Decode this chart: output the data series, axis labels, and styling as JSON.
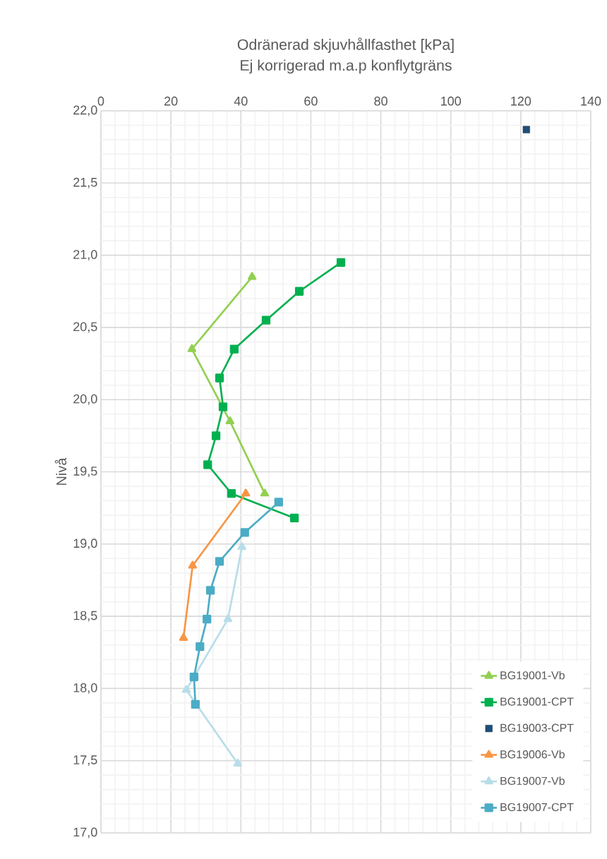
{
  "chart_data": {
    "type": "line",
    "title": "Odränerad skjuvhållfasthet [kPa]",
    "subtitle": "Ej korrigerad m.a.p konflytgräns",
    "ylabel": "Nivå",
    "xlim": [
      0,
      140
    ],
    "xticks": [
      0,
      20,
      40,
      60,
      80,
      100,
      120,
      140
    ],
    "ylim": [
      17,
      22
    ],
    "yticks": [
      {
        "value": 17,
        "label": "17,0"
      },
      {
        "value": 17.5,
        "label": "17,5"
      },
      {
        "value": 18,
        "label": "18,0"
      },
      {
        "value": 18.5,
        "label": "18,5"
      },
      {
        "value": 19,
        "label": "19,0"
      },
      {
        "value": 19.5,
        "label": "19,5"
      },
      {
        "value": 20,
        "label": "20,0"
      },
      {
        "value": 20.5,
        "label": "20,5"
      },
      {
        "value": 21,
        "label": "21,0"
      },
      {
        "value": 21.5,
        "label": "21,5"
      },
      {
        "value": 22,
        "label": "22,0"
      }
    ],
    "grid": true,
    "legend": "bottom right",
    "series": [
      {
        "name": "BG19001-Vb",
        "color": "#92d050",
        "marker": "triangle",
        "x": [
          43.2,
          26.0,
          36.9,
          46.8
        ],
        "values": [
          20.85,
          20.35,
          19.85,
          19.35
        ]
      },
      {
        "name": "BG19001-CPT",
        "color": "#00b050",
        "marker": "square",
        "x": [
          68.6,
          56.7,
          47.2,
          38.1,
          33.9,
          34.9,
          32.9,
          30.5,
          37.3,
          55.3
        ],
        "values": [
          20.95,
          20.75,
          20.55,
          20.35,
          20.15,
          19.95,
          19.75,
          19.55,
          19.35,
          19.18
        ]
      },
      {
        "name": "BG19003-CPT",
        "color": "#1f4e79",
        "type": "scatter",
        "marker": "square",
        "x": [
          121.6
        ],
        "values": [
          21.87
        ]
      },
      {
        "name": "BG19006-Vb",
        "color": "#f79646",
        "marker": "triangle",
        "x": [
          41.4,
          26.2,
          23.6
        ],
        "values": [
          19.35,
          18.85,
          18.35
        ]
      },
      {
        "name": "BG19007-Vb",
        "color": "#b7dee8",
        "marker": "triangle",
        "x": [
          40.3,
          36.3,
          24.4,
          39.1
        ],
        "values": [
          18.98,
          18.48,
          17.99,
          17.48
        ]
      },
      {
        "name": "BG19007-CPT",
        "color": "#4bacc6",
        "marker": "square",
        "x": [
          50.8,
          41.1,
          33.9,
          31.3,
          30.3,
          28.3,
          26.6,
          27.0
        ],
        "values": [
          19.29,
          19.08,
          18.88,
          18.68,
          18.48,
          18.29,
          18.08,
          17.89
        ]
      }
    ]
  }
}
